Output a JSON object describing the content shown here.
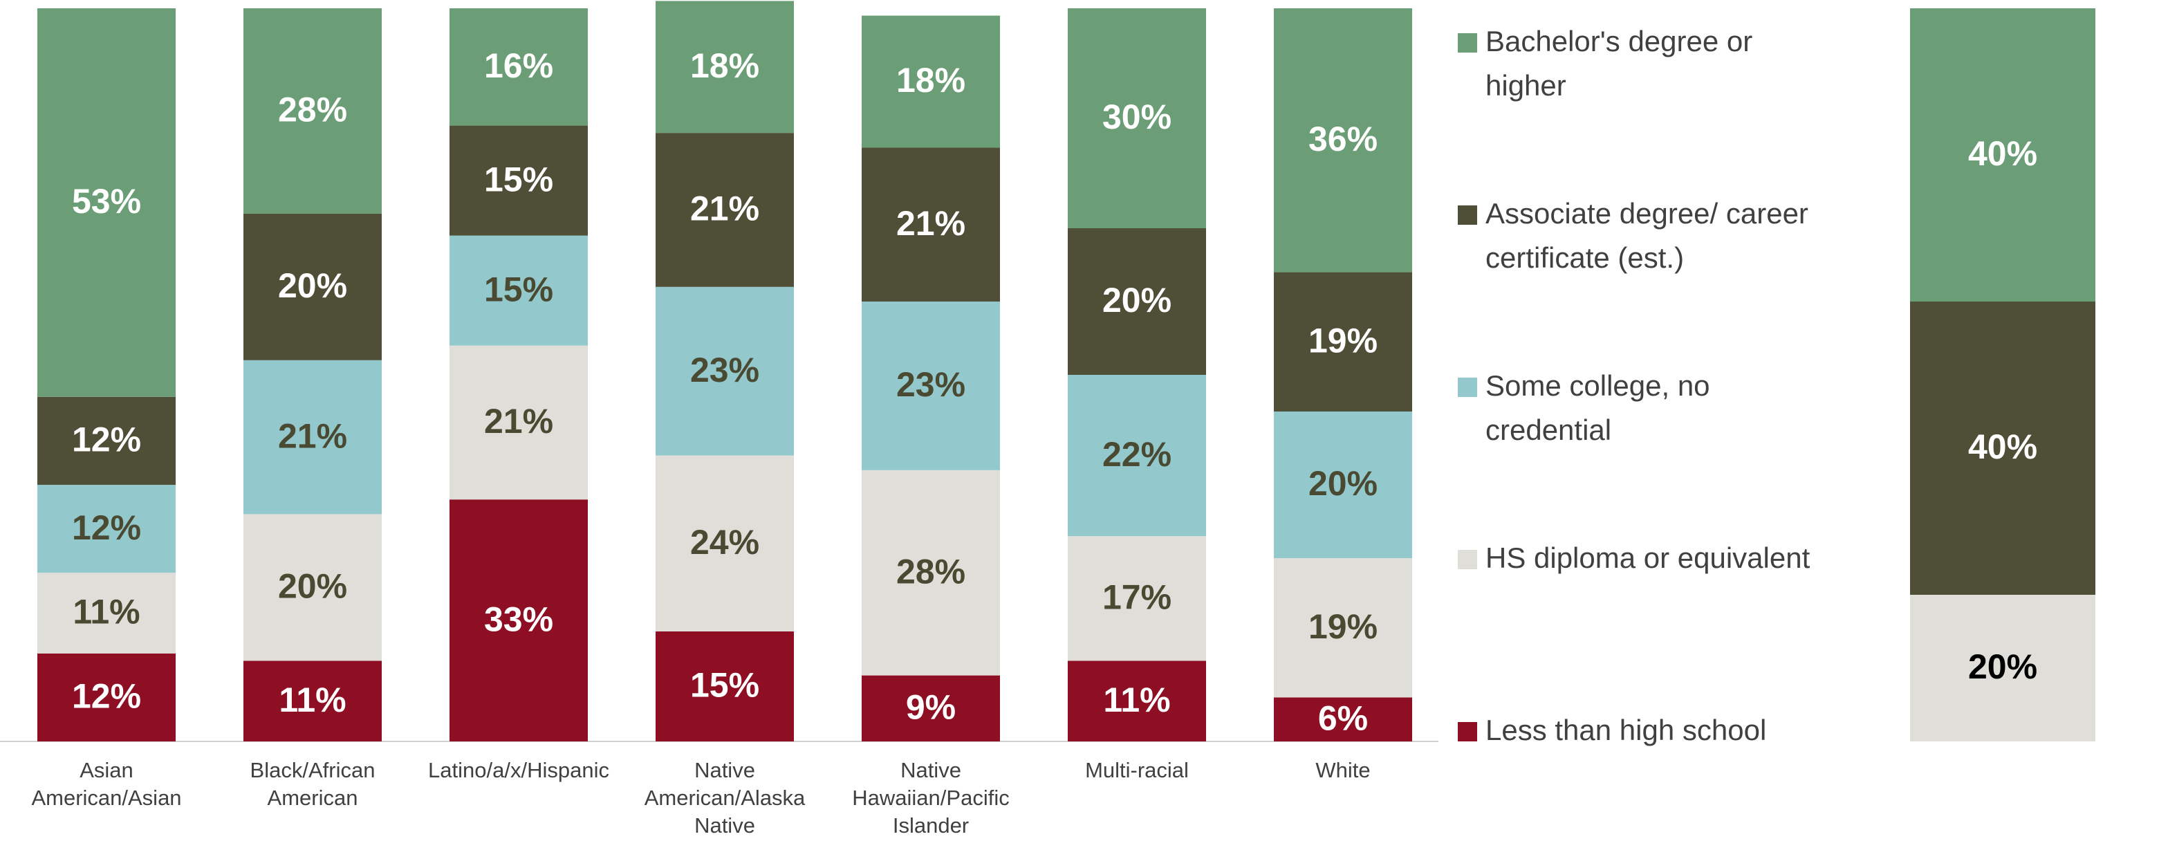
{
  "chart_data": [
    {
      "type": "bar",
      "stacked": true,
      "categories": [
        "Asian American/Asian",
        "Black/African American",
        "Latino/a/x/Hispanic",
        "Native American/Alaska Native",
        "Native Hawaiian/Pacific Islander",
        "Multi-racial",
        "White"
      ],
      "ylim": [
        0,
        100
      ],
      "series": [
        {
          "name": "Less than high school",
          "color": "#8e0f24",
          "label_color": "#ffffff",
          "values": [
            12,
            11,
            33,
            15,
            9,
            11,
            6
          ],
          "value_labels": [
            "12%",
            "11%",
            "33%",
            "15%",
            "9%",
            "11%",
            "6%"
          ]
        },
        {
          "name": "HS diploma or equivalent",
          "color": "#e0ded8",
          "label_color": "#4a4a33",
          "values": [
            11,
            20,
            21,
            24,
            28,
            17,
            19
          ],
          "value_labels": [
            "11%",
            "20%",
            "21%",
            "24%",
            "28%",
            "17%",
            "19%"
          ]
        },
        {
          "name": "Some college, no credential",
          "color": "#93c9cc",
          "label_color": "#4a4a33",
          "values": [
            12,
            21,
            15,
            23,
            23,
            22,
            20
          ],
          "value_labels": [
            "12%",
            "21%",
            "15%",
            "23%",
            "23%",
            "22%",
            "20%"
          ]
        },
        {
          "name": "Associate degree/ career certificate (est.)",
          "color": "#4f4f38",
          "label_color": "#ffffff",
          "values": [
            12,
            20,
            15,
            21,
            21,
            20,
            19
          ],
          "value_labels": [
            "12%",
            "20%",
            "15%",
            "21%",
            "21%",
            "20%",
            "19%"
          ]
        },
        {
          "name": "Bachelor's degree or higher",
          "color": "#6b9e76",
          "label_color": "#ffffff",
          "values": [
            53,
            28,
            16,
            18,
            18,
            30,
            36
          ],
          "value_labels": [
            "53%",
            "28%",
            "16%",
            "18%",
            "18%",
            "30%",
            "36%"
          ]
        }
      ]
    },
    {
      "type": "bar",
      "stacked": true,
      "categories": [
        null
      ],
      "ylim": [
        0,
        100
      ],
      "series": [
        {
          "color": "#e0ded8",
          "label_color": "#000000",
          "values": [
            20
          ],
          "value_labels": [
            "20%"
          ]
        },
        {
          "color": "#4f4f38",
          "label_color": "#ffffff",
          "values": [
            40
          ],
          "value_labels": [
            "40%"
          ]
        },
        {
          "color": "#6b9e76",
          "label_color": "#ffffff",
          "values": [
            40
          ],
          "value_labels": [
            "40%"
          ]
        }
      ]
    }
  ]
}
